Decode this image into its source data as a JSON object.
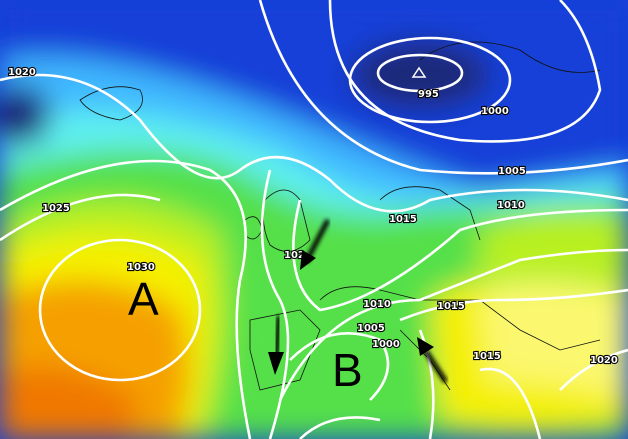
{
  "map": {
    "type": "surface pressure analysis",
    "pressure_centers": [
      {
        "letter": "A",
        "meaning": "high"
      },
      {
        "letter": "B",
        "meaning": "low"
      }
    ],
    "isobar_labels": [
      "1020",
      "995",
      "1000",
      "1005",
      "1010",
      "1015",
      "1025",
      "1030",
      "102",
      "1010",
      "1005",
      "1000",
      "1015",
      "1015",
      "1020"
    ],
    "colors": {
      "deep_low": "#1a2a7a",
      "blue": "#1540d8",
      "light_blue": "#3fb8ff",
      "cyan": "#5ff0f0",
      "green": "#55e04a",
      "lime": "#b8f020",
      "yellow": "#f5f000",
      "orange": "#f5a000",
      "isobar": "#ffffff"
    },
    "wind_arrows": [
      "southwest",
      "south",
      "northwest"
    ]
  }
}
